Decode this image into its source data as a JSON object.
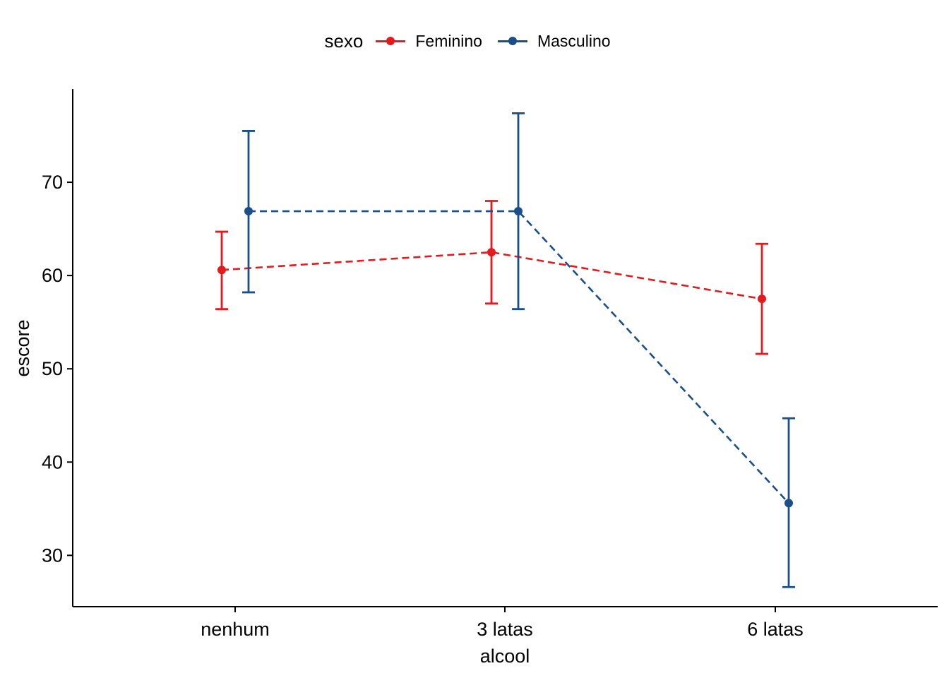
{
  "chart_data": {
    "type": "line",
    "xlabel": "alcool",
    "ylabel": "escore",
    "categories": [
      "nenhum",
      "3 latas",
      "6 latas"
    ],
    "ylim": [
      24.5,
      80
    ],
    "yticks": [
      30,
      40,
      50,
      60,
      70
    ],
    "grid": false,
    "legend": {
      "title": "sexo",
      "position": "top"
    },
    "series": [
      {
        "name": "Feminino",
        "color": "#e41a1c",
        "values": [
          60.6,
          62.5,
          57.5
        ],
        "error_low": [
          56.4,
          57.0,
          51.6
        ],
        "error_high": [
          64.7,
          68.0,
          63.4
        ]
      },
      {
        "name": "Masculino",
        "color": "#1a4f8a",
        "values": [
          66.9,
          66.9,
          35.6
        ],
        "error_low": [
          58.2,
          56.4,
          26.6
        ],
        "error_high": [
          75.5,
          77.4,
          44.7
        ]
      }
    ]
  }
}
